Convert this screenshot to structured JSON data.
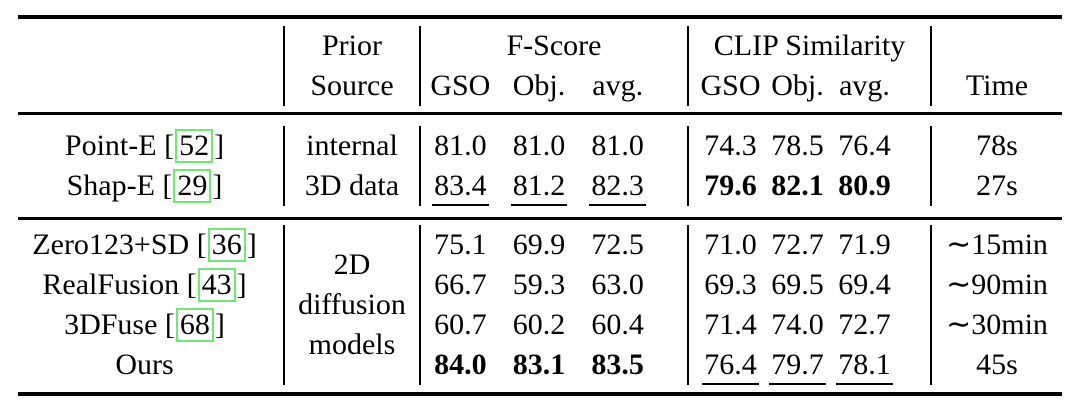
{
  "colors": {
    "background": "#FFFFFF",
    "text": "#000000",
    "rule": "#000000",
    "citation_box_border": "#6FE96F"
  },
  "header": {
    "prior_source": [
      "Prior",
      "Source"
    ],
    "fscore_group": "F-Score",
    "clip_group": "CLIP Similarity",
    "metric_subcols": [
      "GSO",
      "Obj.",
      "avg."
    ],
    "time": "Time"
  },
  "groups": [
    {
      "prior": [
        "internal",
        "3D data"
      ],
      "rows": [
        {
          "method": "Point-E",
          "cite": "52",
          "fscore": [
            "81.0",
            "81.0",
            "81.0"
          ],
          "fscore_fmt": [
            "",
            "",
            ""
          ],
          "clip": [
            "74.3",
            "78.5",
            "76.4"
          ],
          "clip_fmt": [
            "",
            "",
            ""
          ],
          "time": "78s"
        },
        {
          "method": "Shap-E",
          "cite": "29",
          "fscore": [
            "83.4",
            "81.2",
            "82.3"
          ],
          "fscore_fmt": [
            "u",
            "u",
            "u"
          ],
          "clip": [
            "79.6",
            "82.1",
            "80.9"
          ],
          "clip_fmt": [
            "b",
            "b",
            "b"
          ],
          "time": "27s"
        }
      ]
    },
    {
      "prior": [
        "2D",
        "diffusion",
        "models"
      ],
      "rows": [
        {
          "method": "Zero123+SD",
          "cite": "36",
          "fscore": [
            "75.1",
            "69.9",
            "72.5"
          ],
          "fscore_fmt": [
            "",
            "",
            ""
          ],
          "clip": [
            "71.0",
            "72.7",
            "71.9"
          ],
          "clip_fmt": [
            "",
            "",
            ""
          ],
          "time": "∼15min"
        },
        {
          "method": "RealFusion",
          "cite": "43",
          "fscore": [
            "66.7",
            "59.3",
            "63.0"
          ],
          "fscore_fmt": [
            "",
            "",
            ""
          ],
          "clip": [
            "69.3",
            "69.5",
            "69.4"
          ],
          "clip_fmt": [
            "",
            "",
            ""
          ],
          "time": "∼90min"
        },
        {
          "method": "3DFuse",
          "cite": "68",
          "fscore": [
            "60.7",
            "60.2",
            "60.4"
          ],
          "fscore_fmt": [
            "",
            "",
            ""
          ],
          "clip": [
            "71.4",
            "74.0",
            "72.7"
          ],
          "clip_fmt": [
            "",
            "",
            ""
          ],
          "time": "∼30min"
        },
        {
          "method": "Ours",
          "cite": "",
          "fscore": [
            "84.0",
            "83.1",
            "83.5"
          ],
          "fscore_fmt": [
            "b",
            "b",
            "b"
          ],
          "clip": [
            "76.4",
            "79.7",
            "78.1"
          ],
          "clip_fmt": [
            "u",
            "u",
            "u"
          ],
          "time": "45s"
        }
      ]
    }
  ]
}
